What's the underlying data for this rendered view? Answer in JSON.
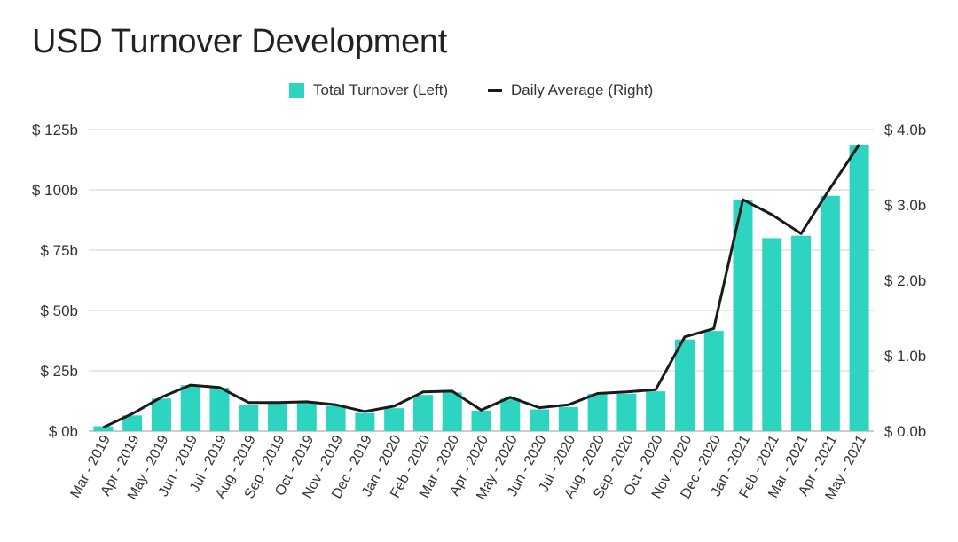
{
  "chart_data": {
    "type": "bar",
    "title": "USD Turnover Development",
    "categories": [
      "Mar - 2019",
      "Apr - 2019",
      "May - 2019",
      "Jun - 2019",
      "Jul - 2019",
      "Aug - 2019",
      "Sep - 2019",
      "Oct - 2019",
      "Nov - 2019",
      "Dec - 2019",
      "Jan - 2020",
      "Feb - 2020",
      "Mar - 2020",
      "Apr - 2020",
      "May - 2020",
      "Jun - 2020",
      "Jul - 2020",
      "Aug - 2020",
      "Sep - 2020",
      "Oct - 2020",
      "Nov - 2020",
      "Dec - 2020",
      "Jan - 2021",
      "Feb - 2021",
      "Mar - 2021",
      "Apr - 2021",
      "May - 2021"
    ],
    "series": [
      {
        "name": "Total Turnover (Left)",
        "type": "bar",
        "axis": "left",
        "color": "#2dd4bf",
        "values": [
          2,
          6.5,
          13.5,
          19,
          18,
          11,
          11.5,
          12,
          10.5,
          7.5,
          9.5,
          15,
          16,
          8.5,
          13.5,
          9,
          10,
          15.5,
          15.5,
          16.5,
          38,
          41.5,
          96,
          80,
          81,
          97.5,
          118.5
        ]
      },
      {
        "name": "Daily Average (Right)",
        "type": "line",
        "axis": "right",
        "color": "#1a1a1a",
        "values": [
          0.05,
          0.23,
          0.45,
          0.61,
          0.58,
          0.38,
          0.38,
          0.39,
          0.35,
          0.26,
          0.33,
          0.52,
          0.53,
          0.28,
          0.45,
          0.31,
          0.35,
          0.5,
          0.52,
          0.55,
          1.25,
          1.36,
          3.07,
          2.87,
          2.62,
          3.22,
          3.8
        ]
      }
    ],
    "y_left": {
      "ylim": [
        0,
        125
      ],
      "ticks": [
        0,
        25,
        50,
        75,
        100,
        125
      ],
      "tick_labels": [
        "$ 0b",
        "$ 25b",
        "$ 50b",
        "$ 75b",
        "$ 100b",
        "$ 125b"
      ]
    },
    "y_right": {
      "ylim": [
        0,
        4
      ],
      "ticks": [
        0,
        1,
        2,
        3,
        4
      ],
      "tick_labels": [
        "$ 0.0b",
        "$ 1.0b",
        "$ 2.0b",
        "$ 3.0b",
        "$ 4.0b"
      ]
    },
    "grid": true,
    "legend_position": "top-center"
  }
}
